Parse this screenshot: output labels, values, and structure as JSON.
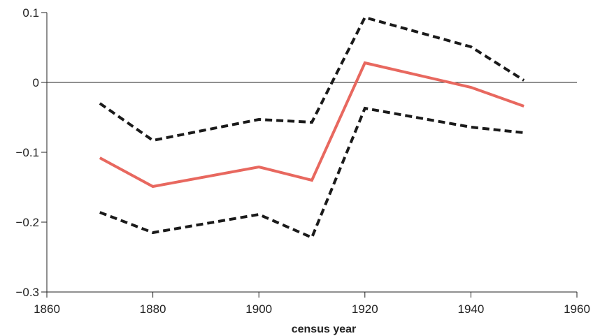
{
  "chart_data": {
    "type": "line",
    "title": "",
    "xlabel": "census year",
    "ylabel": "",
    "xlim": [
      1860,
      1960
    ],
    "ylim": [
      -0.3,
      0.1
    ],
    "x_ticks": [
      1860,
      1880,
      1900,
      1920,
      1940,
      1960
    ],
    "y_ticks": [
      0.1,
      0,
      -0.1,
      -0.2,
      -0.3
    ],
    "y_tick_labels": [
      "0.1",
      "0",
      "−0.1",
      "−0.2",
      "−0.3"
    ],
    "zero_line": true,
    "grid": false,
    "legend": "none",
    "series": [
      {
        "role": "upper-bound",
        "style": "dashed",
        "color": "#1a1a1a",
        "x": [
          1870,
          1880,
          1900,
          1910,
          1920,
          1940,
          1950
        ],
        "y": [
          -0.03,
          -0.083,
          -0.053,
          -0.057,
          0.093,
          0.051,
          0.003
        ]
      },
      {
        "role": "estimate",
        "style": "solid",
        "color": "#e8685f",
        "x": [
          1870,
          1880,
          1900,
          1910,
          1920,
          1940,
          1950
        ],
        "y": [
          -0.108,
          -0.149,
          -0.121,
          -0.14,
          0.028,
          -0.007,
          -0.034
        ]
      },
      {
        "role": "lower-bound",
        "style": "dashed",
        "color": "#1a1a1a",
        "x": [
          1870,
          1880,
          1900,
          1910,
          1920,
          1940,
          1950
        ],
        "y": [
          -0.186,
          -0.215,
          -0.189,
          -0.222,
          -0.037,
          -0.064,
          -0.072
        ]
      }
    ]
  }
}
